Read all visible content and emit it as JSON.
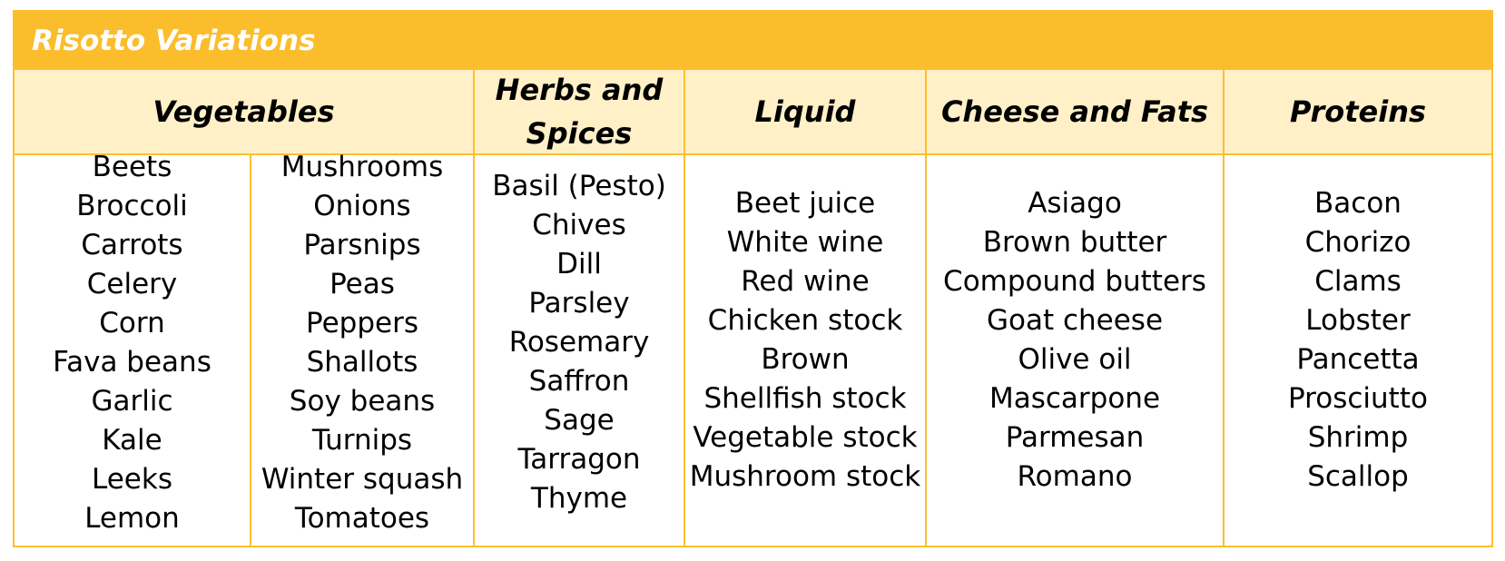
{
  "title": "Risotto Variations",
  "headers": {
    "vegetables": "Vegetables",
    "herbs_line1": "Herbs and",
    "herbs_line2": "Spices",
    "liquid": "Liquid",
    "cheese": "Cheese and Fats",
    "proteins": "Proteins"
  },
  "columns": {
    "vegetables_a": [
      "Beets",
      "Broccoli",
      "Carrots",
      "Celery",
      "Corn",
      "Fava beans",
      "Garlic",
      "Kale",
      "Leeks",
      "Lemon"
    ],
    "vegetables_b": [
      "Mushrooms",
      "Onions",
      "Parsnips",
      "Peas",
      "Peppers",
      "Shallots",
      "Soy beans",
      "Turnips",
      "Winter squash",
      "Tomatoes"
    ],
    "herbs": [
      "Basil (Pesto)",
      "Chives",
      "Dill",
      "Parsley",
      "Rosemary",
      "Saffron",
      "Sage",
      "Tarragon",
      "Thyme"
    ],
    "liquid": [
      "Beet juice",
      "White wine",
      "Red wine",
      "Chicken stock",
      "Brown",
      "Shellfish stock",
      "Vegetable stock",
      "Mushroom stock"
    ],
    "cheese": [
      "Asiago",
      "Brown butter",
      "Compound butters",
      "Goat cheese",
      "Olive oil",
      "Mascarpone",
      "Parmesan",
      "Romano"
    ],
    "proteins": [
      "Bacon",
      "Chorizo",
      "Clams",
      "Lobster",
      "Pancetta",
      "Prosciutto",
      "Shrimp",
      "Scallop"
    ]
  },
  "colors": {
    "title_bar": "#fbbd2c",
    "header_fill": "#fff0c7",
    "border": "#fbc02d"
  }
}
